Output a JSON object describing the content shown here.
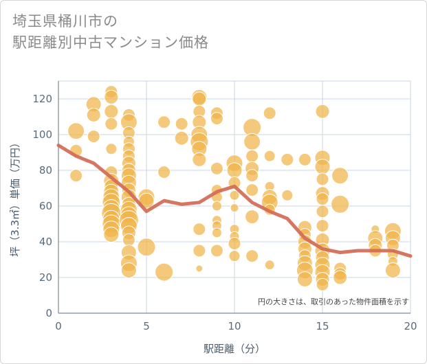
{
  "chart_data": {
    "type": "scatter",
    "title": [
      "埼玉県桶川市の",
      "駅距離別中古マンション価格"
    ],
    "xlabel": "駅距離（分）",
    "ylabel": "坪（3.3㎡）単価（万円）",
    "xlim": [
      0,
      20
    ],
    "ylim": [
      0,
      130
    ],
    "xticks": [
      0,
      5,
      10,
      15,
      20
    ],
    "yticks": [
      0,
      20,
      40,
      60,
      80,
      100,
      120
    ],
    "grid": true,
    "note": "円の大きさは、取引のあった物件面積を示す",
    "colors": {
      "bubble": "#f0b44a",
      "line": "#d36a55",
      "grid": "#c9d6e3"
    },
    "points": [
      {
        "x": 1,
        "y": 102,
        "s": 12
      },
      {
        "x": 1,
        "y": 91,
        "s": 9
      },
      {
        "x": 1,
        "y": 77,
        "s": 9
      },
      {
        "x": 2,
        "y": 117,
        "s": 11
      },
      {
        "x": 2,
        "y": 111,
        "s": 10
      },
      {
        "x": 2,
        "y": 99,
        "s": 9
      },
      {
        "x": 3,
        "y": 124,
        "s": 9
      },
      {
        "x": 3,
        "y": 121,
        "s": 10
      },
      {
        "x": 3,
        "y": 113,
        "s": 10
      },
      {
        "x": 3,
        "y": 106,
        "s": 9
      },
      {
        "x": 3,
        "y": 92,
        "s": 8
      },
      {
        "x": 3,
        "y": 79,
        "s": 9
      },
      {
        "x": 3,
        "y": 74,
        "s": 11
      },
      {
        "x": 3,
        "y": 71,
        "s": 10
      },
      {
        "x": 3,
        "y": 68,
        "s": 11
      },
      {
        "x": 3,
        "y": 65,
        "s": 12
      },
      {
        "x": 3,
        "y": 62,
        "s": 13
      },
      {
        "x": 3,
        "y": 59,
        "s": 12
      },
      {
        "x": 3,
        "y": 56,
        "s": 14
      },
      {
        "x": 3,
        "y": 53,
        "s": 12
      },
      {
        "x": 3,
        "y": 50,
        "s": 13
      },
      {
        "x": 3,
        "y": 47,
        "s": 12
      },
      {
        "x": 3,
        "y": 44,
        "s": 11
      },
      {
        "x": 4,
        "y": 111,
        "s": 9
      },
      {
        "x": 4,
        "y": 107,
        "s": 12
      },
      {
        "x": 4,
        "y": 101,
        "s": 9
      },
      {
        "x": 4,
        "y": 96,
        "s": 8
      },
      {
        "x": 4,
        "y": 92,
        "s": 9
      },
      {
        "x": 4,
        "y": 88,
        "s": 9
      },
      {
        "x": 4,
        "y": 84,
        "s": 10
      },
      {
        "x": 4,
        "y": 80,
        "s": 10
      },
      {
        "x": 4,
        "y": 77,
        "s": 11
      },
      {
        "x": 4,
        "y": 73,
        "s": 11
      },
      {
        "x": 4,
        "y": 69,
        "s": 10
      },
      {
        "x": 4,
        "y": 65,
        "s": 11
      },
      {
        "x": 4,
        "y": 61,
        "s": 10
      },
      {
        "x": 4,
        "y": 58,
        "s": 12
      },
      {
        "x": 4,
        "y": 55,
        "s": 12
      },
      {
        "x": 4,
        "y": 52,
        "s": 14
      },
      {
        "x": 4,
        "y": 49,
        "s": 12
      },
      {
        "x": 4,
        "y": 45,
        "s": 10
      },
      {
        "x": 4,
        "y": 41,
        "s": 9
      },
      {
        "x": 4,
        "y": 34,
        "s": 11
      },
      {
        "x": 4,
        "y": 28,
        "s": 12
      },
      {
        "x": 4,
        "y": 24,
        "s": 11
      },
      {
        "x": 5,
        "y": 65,
        "s": 12
      },
      {
        "x": 5,
        "y": 63,
        "s": 11
      },
      {
        "x": 5,
        "y": 37,
        "s": 13
      },
      {
        "x": 6,
        "y": 107,
        "s": 9
      },
      {
        "x": 6,
        "y": 79,
        "s": 9
      },
      {
        "x": 6,
        "y": 23,
        "s": 13
      },
      {
        "x": 7,
        "y": 106,
        "s": 9
      },
      {
        "x": 7,
        "y": 98,
        "s": 10
      },
      {
        "x": 8,
        "y": 121,
        "s": 11
      },
      {
        "x": 8,
        "y": 120,
        "s": 10
      },
      {
        "x": 8,
        "y": 113,
        "s": 9
      },
      {
        "x": 8,
        "y": 107,
        "s": 10
      },
      {
        "x": 8,
        "y": 100,
        "s": 12
      },
      {
        "x": 8,
        "y": 96,
        "s": 13
      },
      {
        "x": 8,
        "y": 92,
        "s": 11
      },
      {
        "x": 8,
        "y": 86,
        "s": 10
      },
      {
        "x": 8,
        "y": 47,
        "s": 9
      },
      {
        "x": 8,
        "y": 35,
        "s": 9
      },
      {
        "x": 8,
        "y": 25,
        "s": 5
      },
      {
        "x": 9,
        "y": 112,
        "s": 9
      },
      {
        "x": 9,
        "y": 109,
        "s": 9
      },
      {
        "x": 9,
        "y": 81,
        "s": 9
      },
      {
        "x": 9,
        "y": 69,
        "s": 8
      },
      {
        "x": 9,
        "y": 65,
        "s": 8
      },
      {
        "x": 9,
        "y": 60,
        "s": 7
      },
      {
        "x": 9,
        "y": 52,
        "s": 7
      },
      {
        "x": 9,
        "y": 49,
        "s": 7
      },
      {
        "x": 9,
        "y": 45,
        "s": 7
      },
      {
        "x": 9,
        "y": 35,
        "s": 9
      },
      {
        "x": 10,
        "y": 84,
        "s": 12
      },
      {
        "x": 10,
        "y": 80,
        "s": 11
      },
      {
        "x": 10,
        "y": 73,
        "s": 9
      },
      {
        "x": 10,
        "y": 66,
        "s": 7
      },
      {
        "x": 10,
        "y": 59,
        "s": 6
      },
      {
        "x": 10,
        "y": 47,
        "s": 7
      },
      {
        "x": 10,
        "y": 43,
        "s": 7
      },
      {
        "x": 10,
        "y": 39,
        "s": 9
      },
      {
        "x": 10,
        "y": 32,
        "s": 8
      },
      {
        "x": 11,
        "y": 104,
        "s": 13
      },
      {
        "x": 11,
        "y": 96,
        "s": 12
      },
      {
        "x": 11,
        "y": 88,
        "s": 9
      },
      {
        "x": 11,
        "y": 81,
        "s": 10
      },
      {
        "x": 11,
        "y": 77,
        "s": 9
      },
      {
        "x": 11,
        "y": 69,
        "s": 9
      },
      {
        "x": 11,
        "y": 54,
        "s": 10
      },
      {
        "x": 11,
        "y": 32,
        "s": 9
      },
      {
        "x": 12,
        "y": 112,
        "s": 9
      },
      {
        "x": 12,
        "y": 88,
        "s": 8
      },
      {
        "x": 12,
        "y": 71,
        "s": 7
      },
      {
        "x": 12,
        "y": 65,
        "s": 11
      },
      {
        "x": 12,
        "y": 62,
        "s": 12
      },
      {
        "x": 12,
        "y": 58,
        "s": 8
      },
      {
        "x": 12,
        "y": 27,
        "s": 7
      },
      {
        "x": 13,
        "y": 86,
        "s": 9
      },
      {
        "x": 13,
        "y": 66,
        "s": 8
      },
      {
        "x": 14,
        "y": 86,
        "s": 9
      },
      {
        "x": 14,
        "y": 48,
        "s": 10
      },
      {
        "x": 14,
        "y": 44,
        "s": 9
      },
      {
        "x": 14,
        "y": 40,
        "s": 10
      },
      {
        "x": 14,
        "y": 36,
        "s": 10
      },
      {
        "x": 14,
        "y": 32,
        "s": 9
      },
      {
        "x": 14,
        "y": 28,
        "s": 11
      },
      {
        "x": 14,
        "y": 24,
        "s": 12
      },
      {
        "x": 14,
        "y": 19,
        "s": 11
      },
      {
        "x": 15,
        "y": 113,
        "s": 10
      },
      {
        "x": 15,
        "y": 87,
        "s": 11
      },
      {
        "x": 15,
        "y": 82,
        "s": 11
      },
      {
        "x": 15,
        "y": 75,
        "s": 9
      },
      {
        "x": 15,
        "y": 67,
        "s": 10
      },
      {
        "x": 15,
        "y": 64,
        "s": 9
      },
      {
        "x": 15,
        "y": 57,
        "s": 9
      },
      {
        "x": 15,
        "y": 49,
        "s": 9
      },
      {
        "x": 15,
        "y": 41,
        "s": 10
      },
      {
        "x": 15,
        "y": 35,
        "s": 11
      },
      {
        "x": 15,
        "y": 31,
        "s": 10
      },
      {
        "x": 15,
        "y": 27,
        "s": 11
      },
      {
        "x": 15,
        "y": 23,
        "s": 11
      },
      {
        "x": 15,
        "y": 19,
        "s": 10
      },
      {
        "x": 15,
        "y": 16,
        "s": 9
      },
      {
        "x": 16,
        "y": 77,
        "s": 12
      },
      {
        "x": 16,
        "y": 61,
        "s": 13
      },
      {
        "x": 16,
        "y": 25,
        "s": 9
      },
      {
        "x": 16,
        "y": 22,
        "s": 9
      },
      {
        "x": 16,
        "y": 20,
        "s": 10
      },
      {
        "x": 18,
        "y": 47,
        "s": 6
      },
      {
        "x": 18,
        "y": 42,
        "s": 11
      },
      {
        "x": 18,
        "y": 38,
        "s": 10
      },
      {
        "x": 18,
        "y": 35,
        "s": 9
      },
      {
        "x": 19,
        "y": 46,
        "s": 12
      },
      {
        "x": 19,
        "y": 42,
        "s": 11
      },
      {
        "x": 19,
        "y": 38,
        "s": 9
      },
      {
        "x": 19,
        "y": 33,
        "s": 8
      },
      {
        "x": 19,
        "y": 29,
        "s": 7
      },
      {
        "x": 19,
        "y": 24,
        "s": 11
      }
    ],
    "trend": [
      {
        "x": 0,
        "y": 94
      },
      {
        "x": 1,
        "y": 88
      },
      {
        "x": 2,
        "y": 84
      },
      {
        "x": 3,
        "y": 76
      },
      {
        "x": 4,
        "y": 68
      },
      {
        "x": 5,
        "y": 57
      },
      {
        "x": 6,
        "y": 63
      },
      {
        "x": 7,
        "y": 61
      },
      {
        "x": 8,
        "y": 62
      },
      {
        "x": 9,
        "y": 68
      },
      {
        "x": 10,
        "y": 71
      },
      {
        "x": 11,
        "y": 62
      },
      {
        "x": 12,
        "y": 57
      },
      {
        "x": 13,
        "y": 53
      },
      {
        "x": 14,
        "y": 42
      },
      {
        "x": 15,
        "y": 36
      },
      {
        "x": 16,
        "y": 34
      },
      {
        "x": 17,
        "y": 35
      },
      {
        "x": 18,
        "y": 35
      },
      {
        "x": 19,
        "y": 35
      },
      {
        "x": 20,
        "y": 32
      }
    ]
  }
}
